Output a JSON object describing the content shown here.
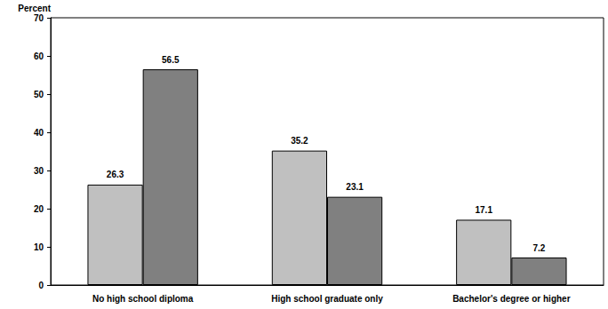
{
  "chart_data": {
    "type": "bar",
    "ylabel": "Percent",
    "categories": [
      "No high school diploma",
      "High school graduate only",
      "Bachelor's degree or higher"
    ],
    "series": [
      {
        "color": "#c0c0c0",
        "values": [
          26.3,
          35.2,
          17.1
        ]
      },
      {
        "color": "#808080",
        "values": [
          56.5,
          23.1,
          7.2
        ]
      }
    ],
    "ylim": [
      0,
      70
    ],
    "yticks": [
      0,
      10,
      20,
      30,
      40,
      50,
      60,
      70
    ],
    "grid": false,
    "data_labels": true
  }
}
